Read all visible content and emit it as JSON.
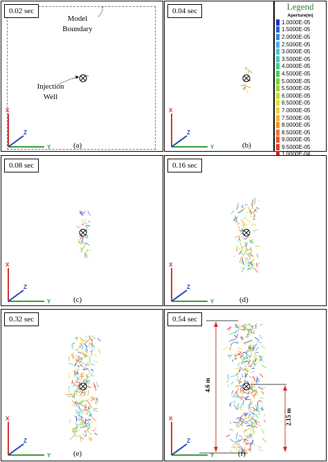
{
  "panels": [
    {
      "time": "0.02 sec",
      "label": "(a)"
    },
    {
      "time": "0.04 sec",
      "label": "(b)"
    },
    {
      "time": "0.08 sec",
      "label": "(c)"
    },
    {
      "time": "0.16 sec",
      "label": "(d)"
    },
    {
      "time": "0.32 sec",
      "label": "(e)"
    },
    {
      "time": "0.54 sec",
      "label": "(f)"
    }
  ],
  "annotations": {
    "model_boundary": "Model Boundary",
    "injection_well": "Injection Well",
    "height": "4.6 m",
    "half_height": "2.15 m"
  },
  "axes": {
    "x": "X",
    "y": "Y",
    "z": "Z"
  },
  "axis_colors": {
    "x": "#d32f2f",
    "y": "#2e9d2e",
    "z": "#1a3fb0"
  },
  "legend": {
    "title": "Legend",
    "subtitle": "Aperture(m)",
    "entries": [
      {
        "value": "1.0000E-05",
        "color": "#1c2fd0"
      },
      {
        "value": "1.5000E-05",
        "color": "#2a5fe0"
      },
      {
        "value": "2.0000E-05",
        "color": "#3c8ae8"
      },
      {
        "value": "2.5000E-05",
        "color": "#4fb0ea"
      },
      {
        "value": "3.0000E-05",
        "color": "#46c9d8"
      },
      {
        "value": "3.5000E-05",
        "color": "#3ed0b4"
      },
      {
        "value": "4.0000E-05",
        "color": "#3ecf8a"
      },
      {
        "value": "4.5000E-05",
        "color": "#48cc5c"
      },
      {
        "value": "5.0000E-05",
        "color": "#6fd23c"
      },
      {
        "value": "5.5000E-05",
        "color": "#98d92e"
      },
      {
        "value": "6.0000E-05",
        "color": "#bfe02a"
      },
      {
        "value": "6.5000E-05",
        "color": "#e0e22a"
      },
      {
        "value": "7.0000E-05",
        "color": "#f2d42a"
      },
      {
        "value": "7.5000E-05",
        "color": "#f5b42a"
      },
      {
        "value": "8.0000E-05",
        "color": "#f49428"
      },
      {
        "value": "8.5000E-05",
        "color": "#f07428"
      },
      {
        "value": "9.0000E-05",
        "color": "#ea5428"
      },
      {
        "value": "9.5000E-05",
        "color": "#e23a28"
      },
      {
        "value": "1.0000E-04",
        "color": "#d61e1e"
      }
    ]
  }
}
